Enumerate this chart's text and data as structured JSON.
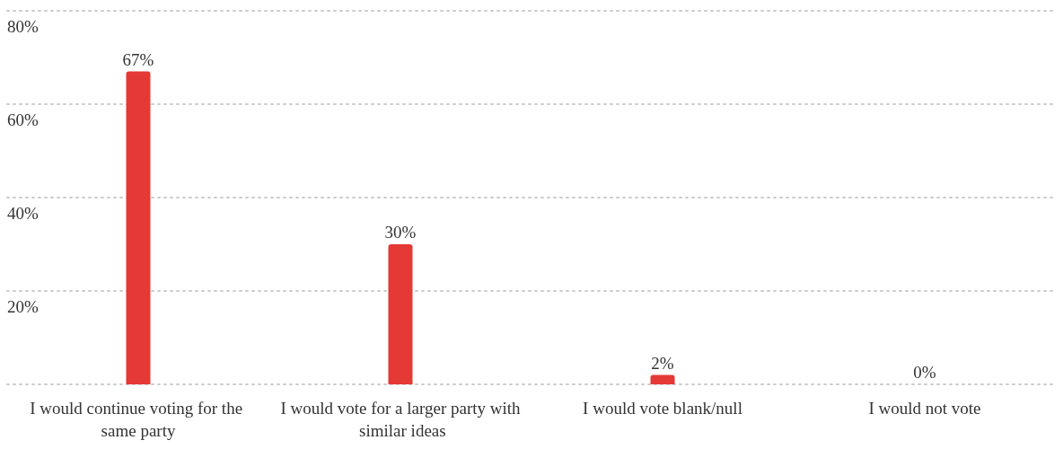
{
  "chart_data": {
    "type": "bar",
    "categories": [
      "I would continue voting for the same party",
      "I would vote for a larger party with similar ideas",
      "I would vote blank/null",
      "I would not vote"
    ],
    "values": [
      67,
      30,
      2,
      0
    ],
    "value_labels": [
      "67%",
      "30%",
      "2%",
      "0%"
    ],
    "color": "#e53935",
    "ylim": [
      0,
      80
    ],
    "yticks": [
      {
        "value": 0,
        "label": null
      },
      {
        "value": 20,
        "label": "20%"
      },
      {
        "value": 40,
        "label": "40%"
      },
      {
        "value": 60,
        "label": "60%"
      },
      {
        "value": 80,
        "label": "80%"
      }
    ],
    "grid": "y"
  }
}
